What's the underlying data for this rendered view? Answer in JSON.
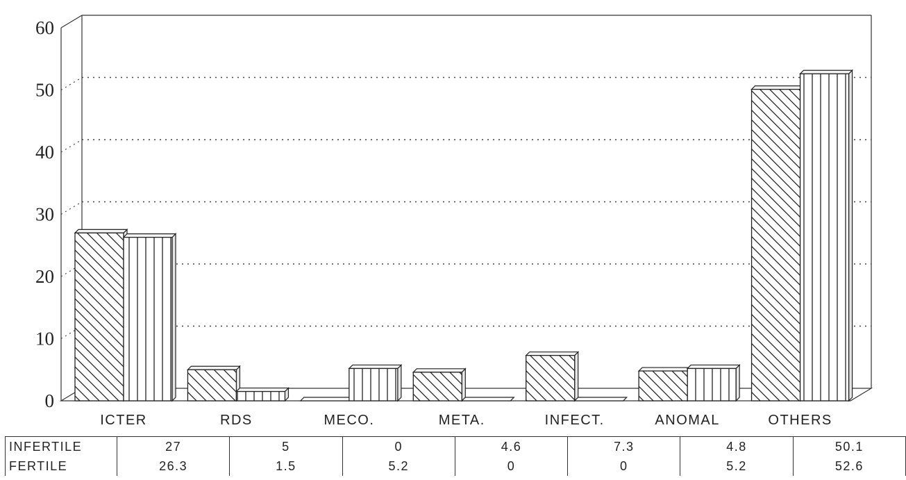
{
  "chart_data": {
    "type": "bar",
    "categories": [
      "ICTER",
      "RDS",
      "MECO.",
      "META.",
      "INFECT.",
      "ANOMAL",
      "OTHERS"
    ],
    "series": [
      {
        "name": "INFERTILE",
        "values": [
          27,
          5,
          0,
          4.6,
          7.3,
          4.8,
          50.1
        ],
        "pattern": "diagonal-hatch"
      },
      {
        "name": "FERTILE",
        "values": [
          26.3,
          1.5,
          5.2,
          0,
          0,
          5.2,
          52.6
        ],
        "pattern": "vertical-lines"
      }
    ],
    "ylim": [
      0,
      60
    ],
    "yticks": [
      "0",
      "10",
      "20",
      "30",
      "40",
      "50",
      "60"
    ],
    "grid": "dotted horizontal",
    "legend": "data table below chart",
    "table": {
      "row_labels": [
        "INFERTILE",
        "FERTILE"
      ],
      "rows": [
        [
          "27",
          "5",
          "0",
          "4.6",
          "7.3",
          "4.8",
          "50.1"
        ],
        [
          "26.3",
          "1.5",
          "5.2",
          "0",
          "0",
          "5.2",
          "52.6"
        ]
      ]
    }
  }
}
